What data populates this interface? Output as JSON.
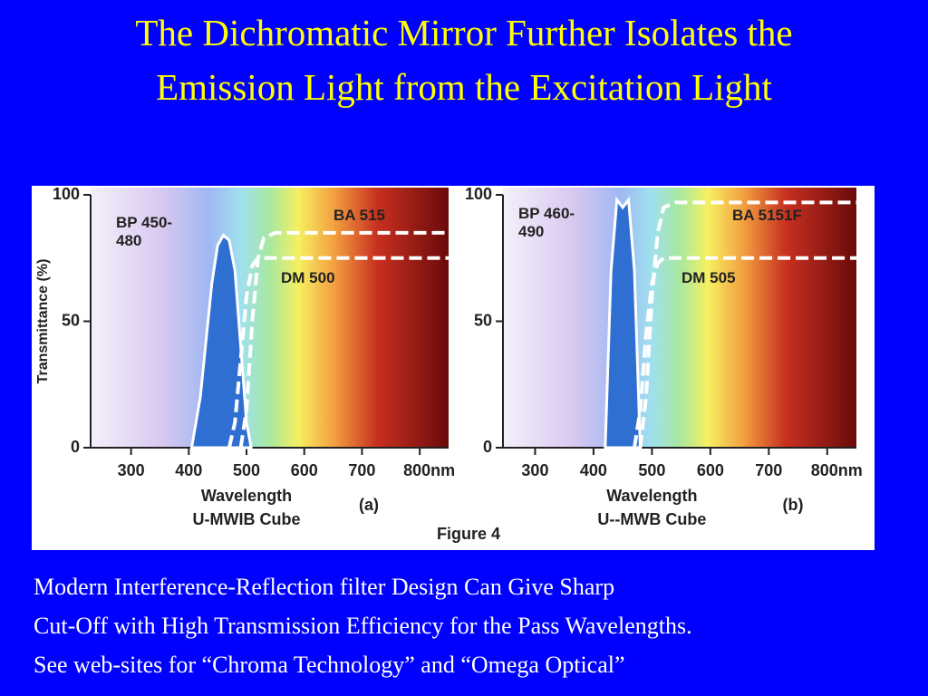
{
  "title": "The Dichromatic Mirror Further Isolates the Emission Light from the Excitation Light",
  "figure_caption": "Figure 4",
  "body": [
    "Modern Interference-Reflection filter Design Can Give Sharp",
    "Cut-Off with High Transmission Efficiency for the Pass Wavelengths.",
    "See web-sites for “Chroma Technology” and “Omega Optical”"
  ],
  "chart_data": [
    {
      "type": "line",
      "y_label": "Transmittance (%)",
      "x_label": "Wavelength",
      "subtitle": "U-MWIB Cube",
      "panel_label": "(a)",
      "xlim": [
        230,
        850
      ],
      "ylim": [
        0,
        100
      ],
      "xticks": [
        300,
        400,
        500,
        600,
        700,
        {
          "value": 800,
          "label": "800nm"
        }
      ],
      "yticks": [
        0,
        50,
        100
      ],
      "series": [
        {
          "name": "BP 450-480",
          "color": "#2f6fd1",
          "fill": true,
          "x": [
            405,
            420,
            440,
            450,
            460,
            470,
            480,
            490,
            500,
            508
          ],
          "values": [
            0,
            20,
            65,
            80,
            84,
            82,
            70,
            40,
            10,
            0
          ]
        },
        {
          "name": "BA 515",
          "color": "#ffffff",
          "x": [
            490,
            500,
            510,
            520,
            530,
            550,
            850
          ],
          "values": [
            0,
            15,
            50,
            75,
            83,
            85,
            85
          ]
        },
        {
          "name": "DM 500",
          "color": "#ffffff",
          "x": [
            470,
            480,
            490,
            500,
            510,
            520,
            850
          ],
          "values": [
            0,
            10,
            35,
            60,
            72,
            75,
            75
          ]
        }
      ]
    },
    {
      "type": "line",
      "x_label": "Wavelength",
      "subtitle": "U--MWB Cube",
      "panel_label": "(b)",
      "xlim": [
        245,
        850
      ],
      "ylim": [
        0,
        100
      ],
      "xticks": [
        300,
        400,
        500,
        600,
        700,
        {
          "value": 800,
          "label": "800nm"
        }
      ],
      "yticks": [
        0,
        50,
        100
      ],
      "series": [
        {
          "name": "BP 460-490",
          "color": "#2f6fd1",
          "fill": true,
          "x": [
            420,
            430,
            440,
            450,
            460,
            470,
            480
          ],
          "values": [
            0,
            70,
            98,
            95,
            98,
            70,
            0
          ]
        },
        {
          "name": "BA 5151F",
          "color": "#ffffff",
          "x": [
            480,
            490,
            500,
            510,
            520,
            540,
            850
          ],
          "values": [
            0,
            20,
            60,
            85,
            95,
            97,
            97
          ]
        },
        {
          "name": "DM 505",
          "color": "#ffffff",
          "x": [
            470,
            480,
            490,
            500,
            510,
            520,
            850
          ],
          "values": [
            0,
            15,
            45,
            65,
            73,
            75,
            75
          ]
        }
      ]
    }
  ]
}
